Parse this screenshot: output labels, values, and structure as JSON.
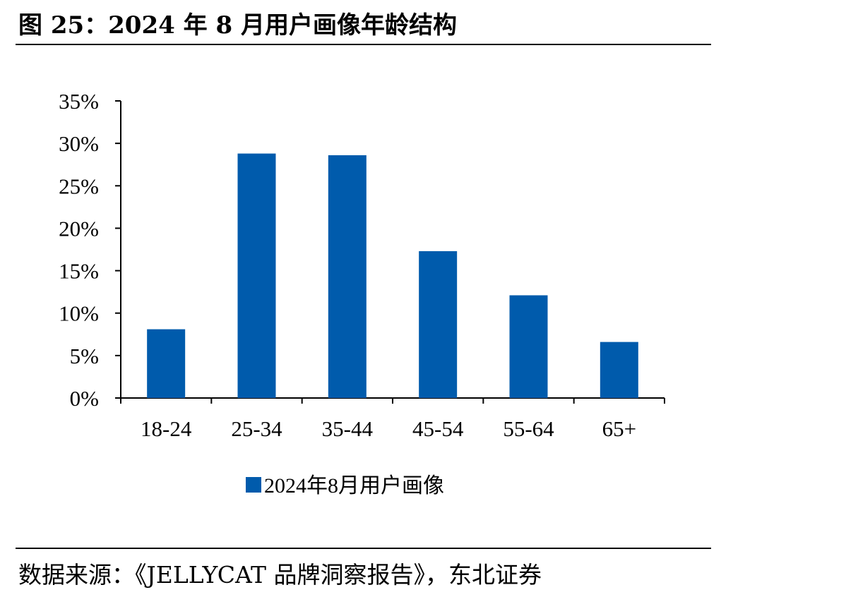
{
  "figure_title": "图 25：2024 年 8 月用户画像年龄结构",
  "source_note": "数据来源：《JELLYCAT 品牌洞察报告》，东北证券",
  "chart_data": {
    "type": "bar",
    "title": "",
    "xlabel": "",
    "ylabel": "",
    "categories": [
      "18-24",
      "25-34",
      "35-44",
      "45-54",
      "55-64",
      "65+"
    ],
    "series": [
      {
        "name": "2024年8月用户画像",
        "values": [
          8.1,
          28.8,
          28.6,
          17.3,
          12.1,
          6.6
        ],
        "color": "#005BAC"
      }
    ],
    "ylim": [
      0,
      35
    ],
    "yticks": [
      0,
      5,
      10,
      15,
      20,
      25,
      30,
      35
    ],
    "ytick_labels": [
      "0%",
      "5%",
      "10%",
      "15%",
      "20%",
      "25%",
      "30%",
      "35%"
    ],
    "grid": false,
    "legend_position": "bottom"
  }
}
